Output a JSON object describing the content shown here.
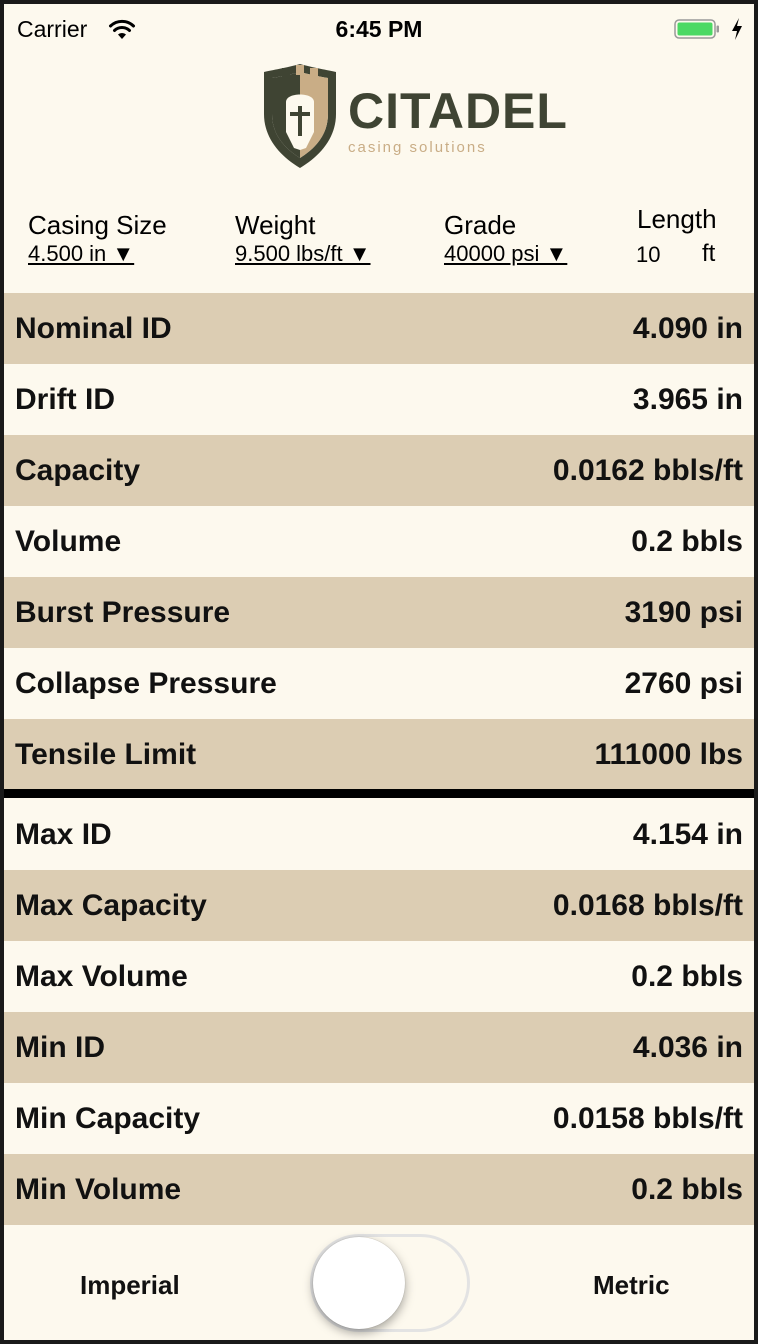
{
  "status_bar": {
    "carrier": "Carrier",
    "time": "6:45 PM"
  },
  "logo": {
    "title": "CITADEL",
    "subtitle": "casing solutions"
  },
  "selectors": {
    "casing_size": {
      "label": "Casing Size",
      "value": "4.500 in ▼"
    },
    "weight": {
      "label": "Weight",
      "value": "9.500 lbs/ft ▼"
    },
    "grade": {
      "label": "Grade",
      "value": "40000 psi ▼"
    },
    "length": {
      "label": "Length",
      "value": "10",
      "unit": "ft"
    }
  },
  "results": [
    {
      "label": "Nominal ID",
      "value": "4.090 in"
    },
    {
      "label": "Drift ID",
      "value": "3.965 in"
    },
    {
      "label": "Capacity",
      "value": "0.0162 bbls/ft"
    },
    {
      "label": "Volume",
      "value": "0.2 bbls"
    },
    {
      "label": "Burst Pressure",
      "value": "3190 psi"
    },
    {
      "label": "Collapse Pressure",
      "value": "2760 psi"
    },
    {
      "label": "Tensile Limit",
      "value": "111000 lbs"
    }
  ],
  "tolerances": [
    {
      "label": "Max ID",
      "value": "4.154 in"
    },
    {
      "label": "Max Capacity",
      "value": "0.0168 bbls/ft"
    },
    {
      "label": "Max Volume",
      "value": "0.2 bbls"
    },
    {
      "label": "Min ID",
      "value": "4.036 in"
    },
    {
      "label": "Min Capacity",
      "value": "0.0158 bbls/ft"
    },
    {
      "label": "Min Volume",
      "value": "0.2 bbls"
    }
  ],
  "units_toggle": {
    "left_label": "Imperial",
    "right_label": "Metric",
    "is_metric": false
  },
  "colors": {
    "background": "#fdf9ee",
    "row_shade": "#dccdb3",
    "logo_dark": "#3f4433",
    "logo_tan": "#c9ad86",
    "battery": "#4cd964"
  },
  "icons": [
    "wifi-icon",
    "battery-icon",
    "charging-bolt-icon",
    "citadel-shield-icon"
  ]
}
